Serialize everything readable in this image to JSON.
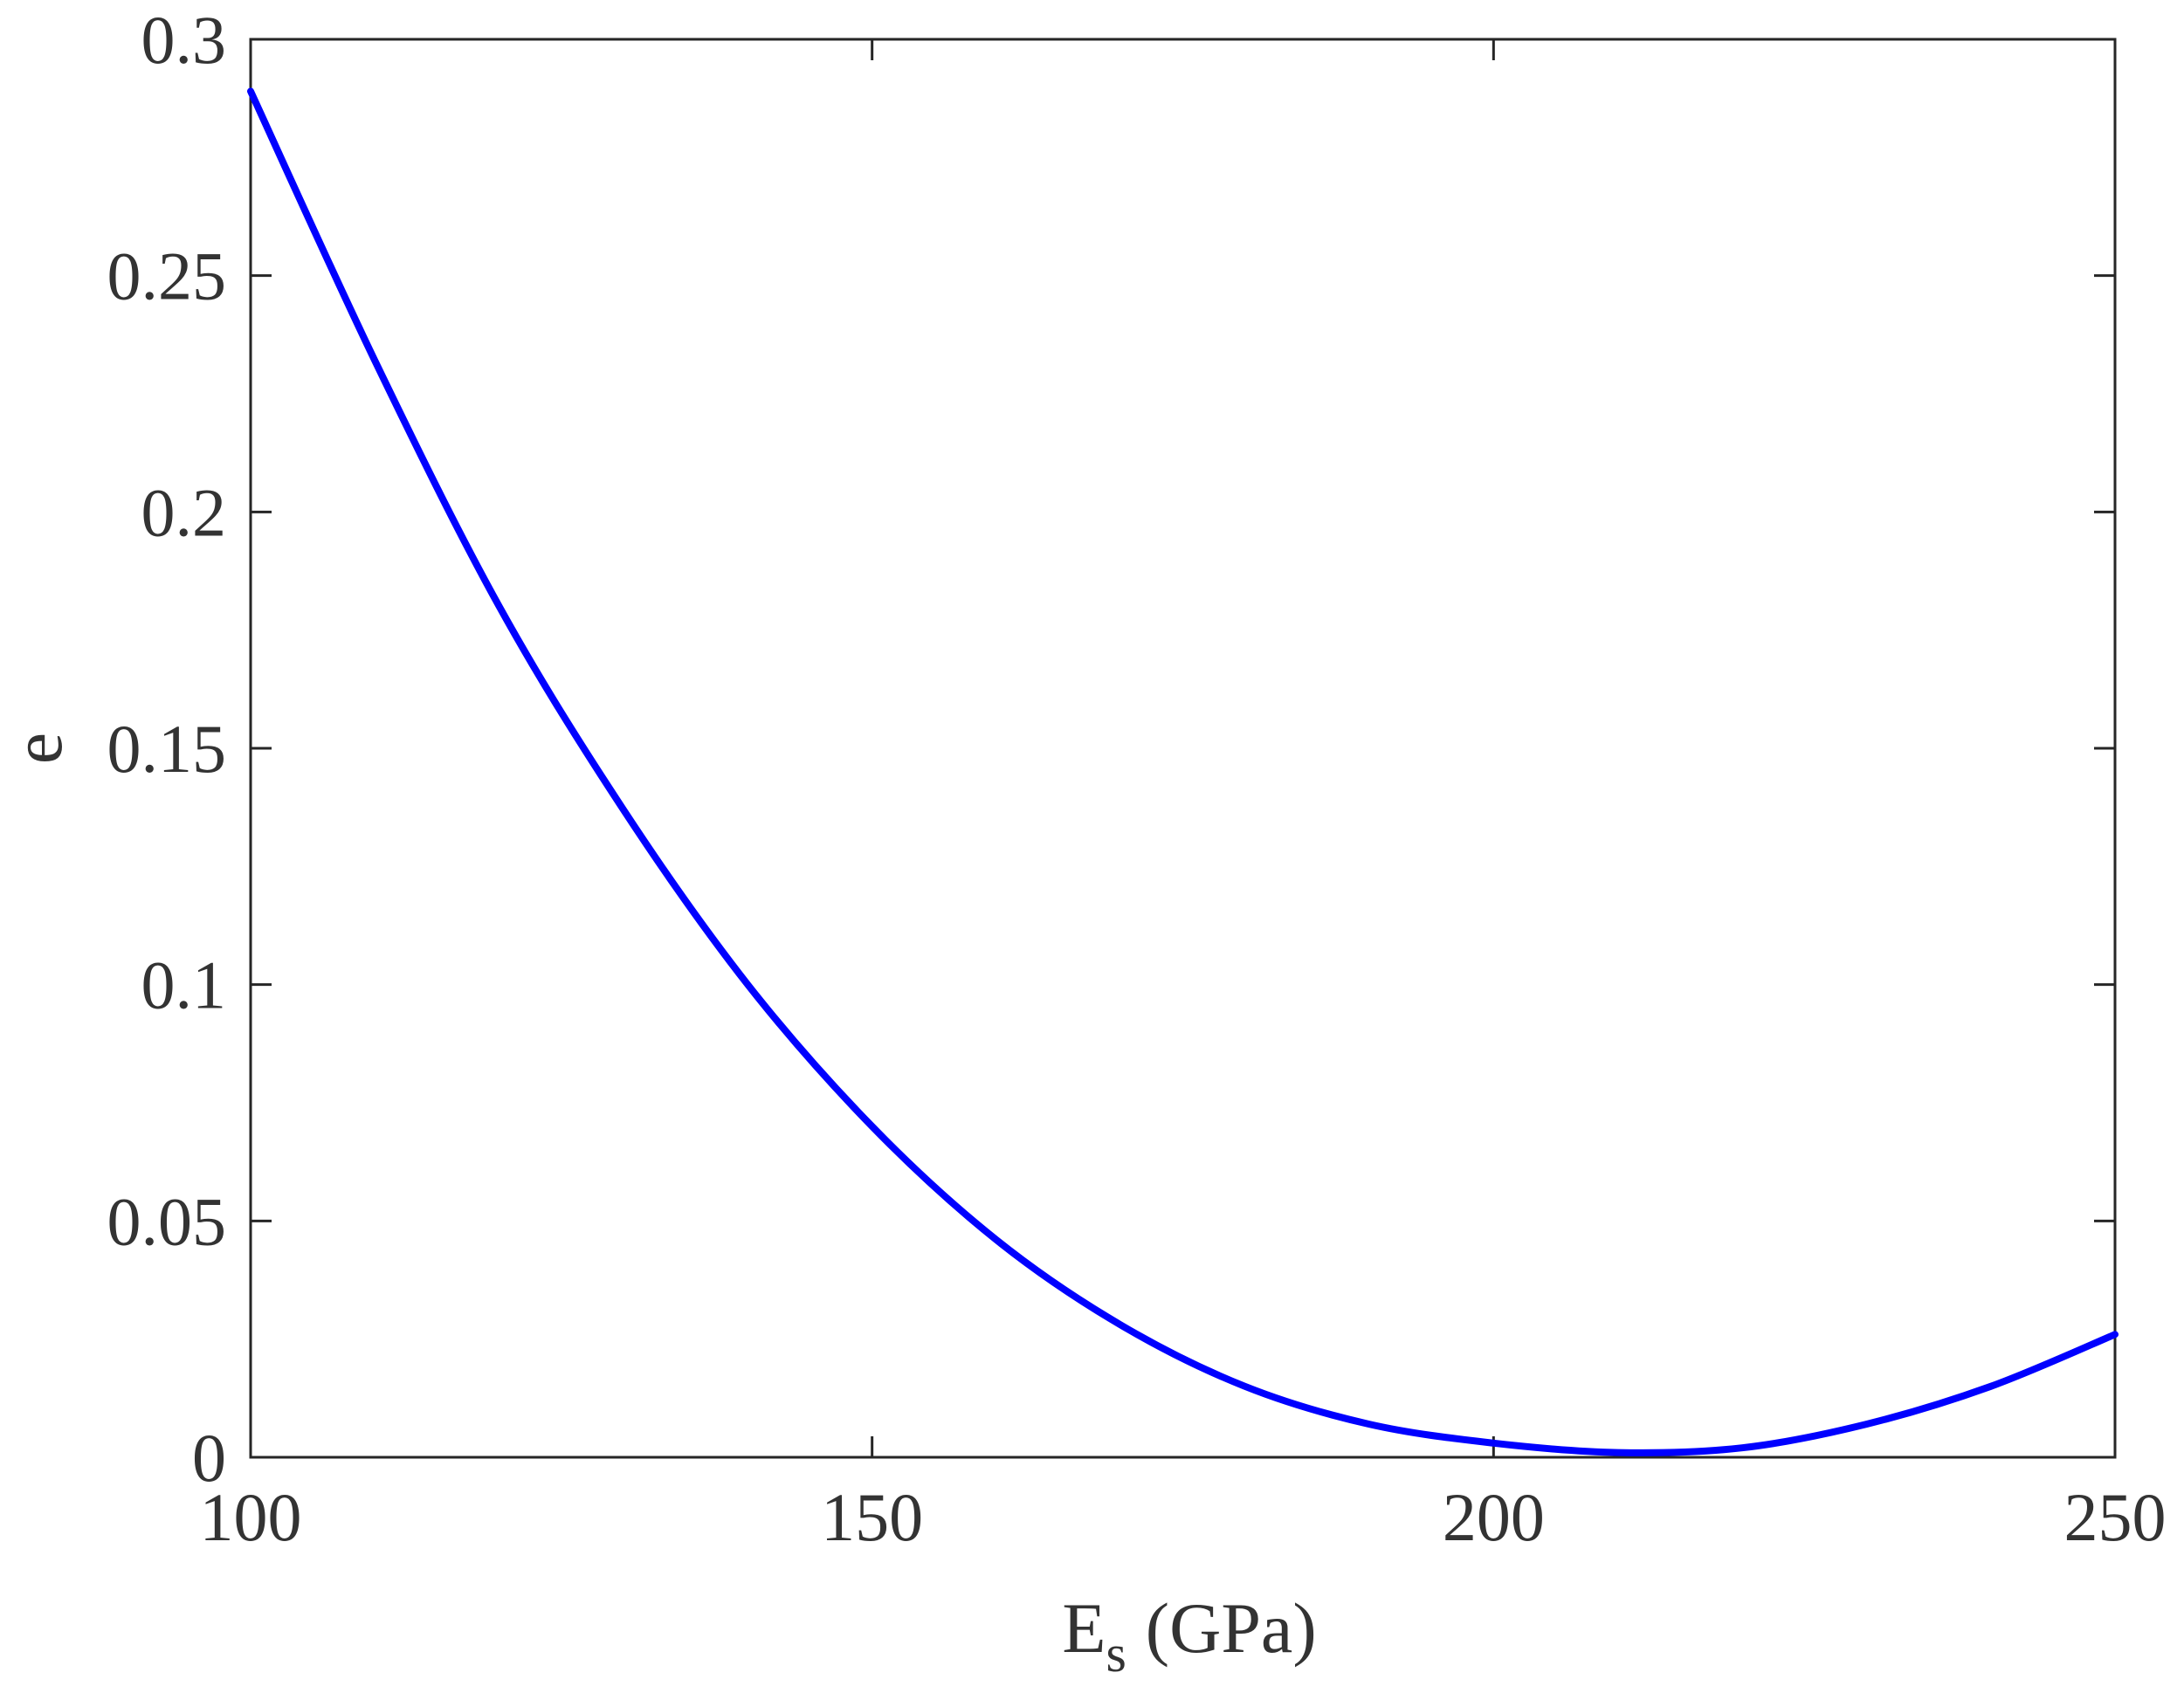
{
  "chart_data": {
    "type": "line",
    "title": "",
    "xlabel": "E",
    "xlabel_subscript": "s",
    "xlabel_unit": "(GPa)",
    "ylabel": "e",
    "xlim": [
      100,
      250
    ],
    "ylim": [
      0,
      0.3
    ],
    "xticks": [
      100,
      150,
      200,
      250
    ],
    "xtick_labels": [
      "100",
      "150",
      "200",
      "250"
    ],
    "yticks": [
      0,
      0.05,
      0.1,
      0.15,
      0.2,
      0.25,
      0.3
    ],
    "ytick_labels": [
      "0",
      "0.05",
      "0.1",
      "0.15",
      "0.2",
      "0.25",
      "0.3"
    ],
    "grid": false,
    "series": [
      {
        "color": "#0000ff",
        "x": [
          100,
          110,
          120,
          130,
          140,
          150,
          160,
          170,
          180,
          190,
          200,
          210,
          220,
          230,
          240,
          250
        ],
        "y": [
          0.289,
          0.232,
          0.18,
          0.137,
          0.1,
          0.07,
          0.046,
          0.028,
          0.015,
          0.007,
          0.003,
          0.001,
          0.002,
          0.007,
          0.015,
          0.026
        ]
      }
    ]
  }
}
